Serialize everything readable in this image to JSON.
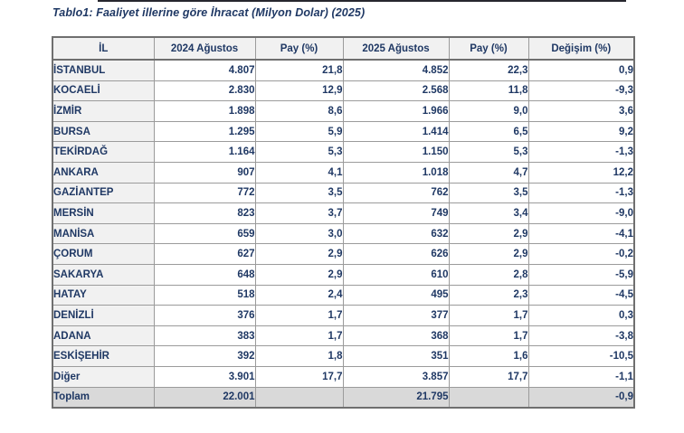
{
  "title": "Tablo1: Faaliyet illerine göre İhracat (Milyon Dolar) (2025)",
  "colors": {
    "text_navy": "#1f3864",
    "header_bg": "#f1f1f1",
    "label_col_bg": "#f1f1f1",
    "total_row_bg": "#d9d9d9",
    "border_inner": "#9b9b9b",
    "border_outer": "#6f6f6f"
  },
  "table": {
    "columns": [
      "İL",
      "2024 Ağustos",
      "Pay (%)",
      "2025 Ağustos",
      "Pay (%)",
      "Değişim (%)"
    ],
    "rows": [
      [
        "İSTANBUL",
        "4.807",
        "21,8",
        "4.852",
        "22,3",
        "0,9"
      ],
      [
        "KOCAELİ",
        "2.830",
        "12,9",
        "2.568",
        "11,8",
        "-9,3"
      ],
      [
        "İZMİR",
        "1.898",
        "8,6",
        "1.966",
        "9,0",
        "3,6"
      ],
      [
        "BURSA",
        "1.295",
        "5,9",
        "1.414",
        "6,5",
        "9,2"
      ],
      [
        "TEKİRDAĞ",
        "1.164",
        "5,3",
        "1.150",
        "5,3",
        "-1,3"
      ],
      [
        "ANKARA",
        "907",
        "4,1",
        "1.018",
        "4,7",
        "12,2"
      ],
      [
        "GAZİANTEP",
        "772",
        "3,5",
        "762",
        "3,5",
        "-1,3"
      ],
      [
        "MERSİN",
        "823",
        "3,7",
        "749",
        "3,4",
        "-9,0"
      ],
      [
        "MANİSA",
        "659",
        "3,0",
        "632",
        "2,9",
        "-4,1"
      ],
      [
        "ÇORUM",
        "627",
        "2,9",
        "626",
        "2,9",
        "-0,2"
      ],
      [
        "SAKARYA",
        "648",
        "2,9",
        "610",
        "2,8",
        "-5,9"
      ],
      [
        "HATAY",
        "518",
        "2,4",
        "495",
        "2,3",
        "-4,5"
      ],
      [
        "DENİZLİ",
        "376",
        "1,7",
        "377",
        "1,7",
        "0,3"
      ],
      [
        "ADANA",
        "383",
        "1,7",
        "368",
        "1,7",
        "-3,8"
      ],
      [
        "ESKİŞEHİR",
        "392",
        "1,8",
        "351",
        "1,6",
        "-10,5"
      ],
      [
        "Diğer",
        "3.901",
        "17,7",
        "3.857",
        "17,7",
        "-1,1"
      ]
    ],
    "total_row": [
      "Toplam",
      "22.001",
      "",
      "21.795",
      "",
      "-0,9"
    ]
  }
}
